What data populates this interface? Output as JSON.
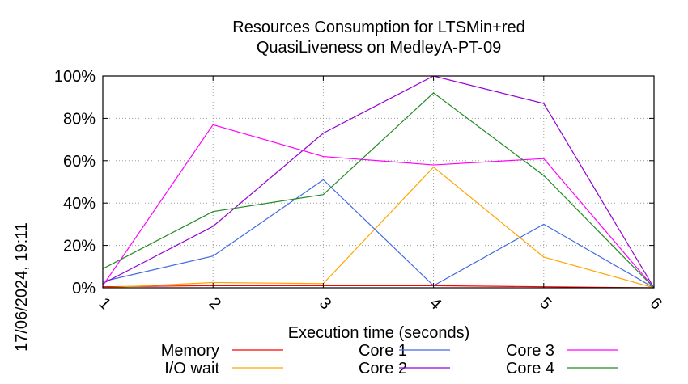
{
  "chart_data": {
    "type": "line",
    "title_lines": [
      "Resources Consumption for LTSMin+red",
      "QuasiLiveness on MedleyA-PT-09"
    ],
    "xlabel": "Execution time (seconds)",
    "ylabel": "",
    "x": [
      1,
      2,
      3,
      4,
      5,
      6
    ],
    "x_ticks": [
      "1",
      "2",
      "3",
      "4",
      "5",
      "6"
    ],
    "y_ticks": [
      "0%",
      "20%",
      "40%",
      "60%",
      "80%",
      "100%"
    ],
    "y_tick_values": [
      0,
      20,
      40,
      60,
      80,
      100
    ],
    "xlim": [
      1,
      6
    ],
    "ylim": [
      0,
      100
    ],
    "grid": true,
    "legend_position": "bottom",
    "timestamp": "17/06/2024, 19:11",
    "series": [
      {
        "name": "Memory",
        "color": "#ff0000",
        "values": [
          0.5,
          1,
          1,
          1,
          0.5,
          0
        ]
      },
      {
        "name": "I/O wait",
        "color": "#ffa500",
        "values": [
          0,
          2.5,
          2,
          57,
          14.5,
          0
        ]
      },
      {
        "name": "Core 1",
        "color": "#4169e1",
        "values": [
          3,
          15,
          51,
          1,
          30,
          0
        ]
      },
      {
        "name": "Core 2",
        "color": "#9400d3",
        "values": [
          2,
          29,
          73,
          100,
          87,
          0
        ]
      },
      {
        "name": "Core 3",
        "color": "#ff00ff",
        "values": [
          1,
          77,
          62,
          58,
          61,
          0
        ]
      },
      {
        "name": "Core 4",
        "color": "#228b22",
        "values": [
          9,
          36,
          44,
          92,
          53,
          0
        ]
      }
    ]
  }
}
